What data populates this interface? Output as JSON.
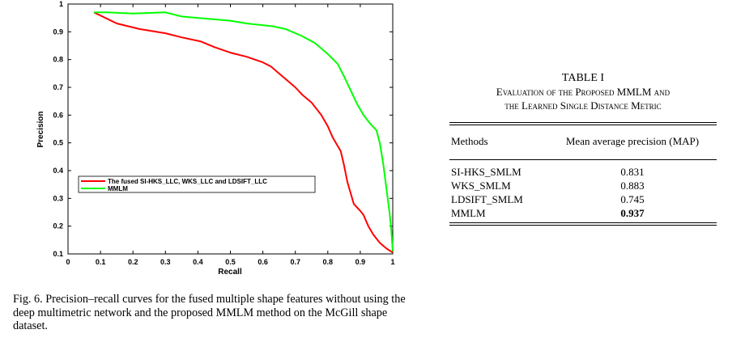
{
  "figure": {
    "caption": "Fig. 6.   Precision–recall curves for the fused multiple shape features without using the deep multimetric network and the proposed MMLM method on the McGill shape dataset."
  },
  "chart_data": {
    "type": "line",
    "xlabel": "Recall",
    "ylabel": "Precision",
    "xlim": [
      0,
      1
    ],
    "ylim": [
      0.1,
      1
    ],
    "x_ticks": [
      "0",
      "0.1",
      "0.2",
      "0.3",
      "0.4",
      "0.5",
      "0.6",
      "0.7",
      "0.8",
      "0.9",
      "1"
    ],
    "y_ticks": [
      "0.1",
      "0.2",
      "0.3",
      "0.4",
      "0.5",
      "0.6",
      "0.7",
      "0.8",
      "0.9",
      "1"
    ],
    "grid": false,
    "legend_position": "center-left",
    "series": [
      {
        "name": "The fused SI-HKS_LLC, WKS_LLC and LDSIFT_LLC",
        "color": "#ff0000",
        "points": [
          [
            0.08,
            0.97
          ],
          [
            0.15,
            0.93
          ],
          [
            0.22,
            0.91
          ],
          [
            0.3,
            0.895
          ],
          [
            0.35,
            0.88
          ],
          [
            0.41,
            0.865
          ],
          [
            0.45,
            0.845
          ],
          [
            0.5,
            0.825
          ],
          [
            0.55,
            0.81
          ],
          [
            0.6,
            0.79
          ],
          [
            0.625,
            0.775
          ],
          [
            0.645,
            0.755
          ],
          [
            0.67,
            0.73
          ],
          [
            0.7,
            0.7
          ],
          [
            0.72,
            0.675
          ],
          [
            0.75,
            0.645
          ],
          [
            0.78,
            0.6
          ],
          [
            0.8,
            0.56
          ],
          [
            0.815,
            0.52
          ],
          [
            0.825,
            0.5
          ],
          [
            0.84,
            0.47
          ],
          [
            0.85,
            0.42
          ],
          [
            0.86,
            0.36
          ],
          [
            0.87,
            0.32
          ],
          [
            0.88,
            0.28
          ],
          [
            0.9,
            0.255
          ],
          [
            0.91,
            0.24
          ],
          [
            0.925,
            0.2
          ],
          [
            0.94,
            0.17
          ],
          [
            0.96,
            0.14
          ],
          [
            0.98,
            0.12
          ],
          [
            1.0,
            0.105
          ]
        ]
      },
      {
        "name": "MMLM",
        "color": "#00ff00",
        "points": [
          [
            0.08,
            0.97
          ],
          [
            0.12,
            0.97
          ],
          [
            0.2,
            0.966
          ],
          [
            0.3,
            0.97
          ],
          [
            0.35,
            0.955
          ],
          [
            0.45,
            0.945
          ],
          [
            0.5,
            0.94
          ],
          [
            0.55,
            0.93
          ],
          [
            0.63,
            0.92
          ],
          [
            0.67,
            0.91
          ],
          [
            0.72,
            0.885
          ],
          [
            0.76,
            0.86
          ],
          [
            0.8,
            0.82
          ],
          [
            0.83,
            0.785
          ],
          [
            0.85,
            0.74
          ],
          [
            0.87,
            0.69
          ],
          [
            0.89,
            0.64
          ],
          [
            0.91,
            0.6
          ],
          [
            0.93,
            0.57
          ],
          [
            0.95,
            0.545
          ],
          [
            0.96,
            0.5
          ],
          [
            0.97,
            0.43
          ],
          [
            0.98,
            0.34
          ],
          [
            0.99,
            0.25
          ],
          [
            0.996,
            0.18
          ],
          [
            1.0,
            0.11
          ]
        ]
      }
    ]
  },
  "table": {
    "title": "TABLE I",
    "subtitle_line1": "Evaluation of the Proposed MMLM and",
    "subtitle_line2": "the Learned Single Distance Metric",
    "headers": [
      "Methods",
      "Mean average precision (MAP)"
    ],
    "rows": [
      {
        "method": "SI-HKS_SMLM",
        "map": "0.831"
      },
      {
        "method": "WKS_SMLM",
        "map": "0.883"
      },
      {
        "method": "LDSIFT_SMLM",
        "map": "0.745"
      },
      {
        "method": "MMLM",
        "map": "0.937"
      }
    ]
  }
}
